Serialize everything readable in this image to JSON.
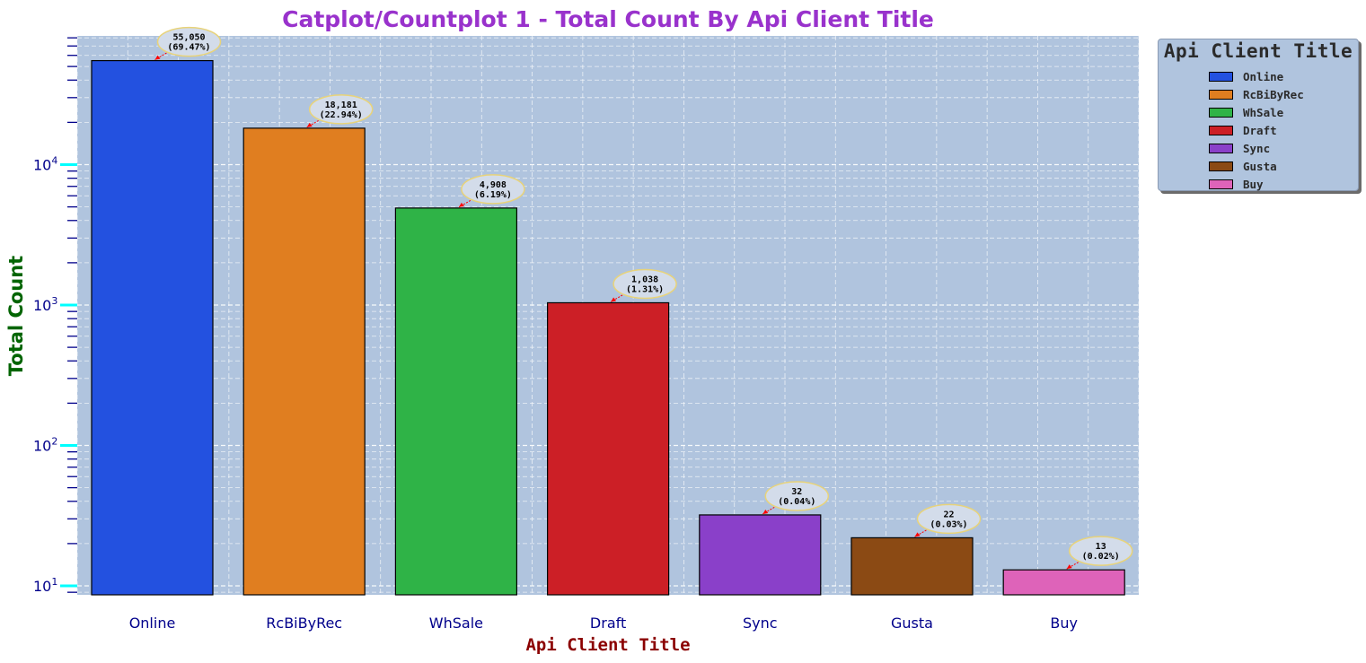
{
  "chart_data": {
    "type": "bar",
    "title": "Catplot/Countplot 1 - Total Count By Api Client Title",
    "xlabel": "Api Client Title",
    "ylabel": "Total Count",
    "yscale": "log",
    "categories": [
      "Online",
      "RcBiByRec",
      "WhSale",
      "Draft",
      "Sync",
      "Gusta",
      "Buy"
    ],
    "values": [
      55050,
      18181,
      4908,
      1038,
      32,
      22,
      13
    ],
    "data_labels": [
      [
        "55,050",
        "(69.47%)"
      ],
      [
        "18,181",
        "(22.94%)"
      ],
      [
        "4,908",
        "(6.19%)"
      ],
      [
        "1,038",
        "(1.31%)"
      ],
      [
        "32",
        "(0.04%)"
      ],
      [
        "22",
        "(0.03%)"
      ],
      [
        "13",
        "(0.02%)"
      ]
    ],
    "colors": [
      "#2351e0",
      "#e07e20",
      "#2fb347",
      "#cc1f26",
      "#8a40c9",
      "#8b4a14",
      "#de63b9"
    ],
    "yticks": [
      {
        "base": "10",
        "exp": "1",
        "value": 10
      },
      {
        "base": "10",
        "exp": "2",
        "value": 100
      },
      {
        "base": "10",
        "exp": "3",
        "value": 1000
      },
      {
        "base": "10",
        "exp": "4",
        "value": 10000
      }
    ],
    "ylim": [
      8,
      90000
    ],
    "grid": true,
    "legend_title": "Api Client Title",
    "legend_placement": "outside-top-right",
    "style": {
      "plot_bg": "#b0c4de",
      "title_color": "#9932cc",
      "xlabel_color": "#8b0000",
      "ylabel_color": "#006400",
      "tick_label_color": "#00008b",
      "major_tick_color": "#00ffff",
      "minor_tick_color": "#00008b",
      "bubble_edge": "#e8d37a",
      "bubble_fill": "#d3dcea",
      "arrow_color": "#ff0000"
    }
  }
}
